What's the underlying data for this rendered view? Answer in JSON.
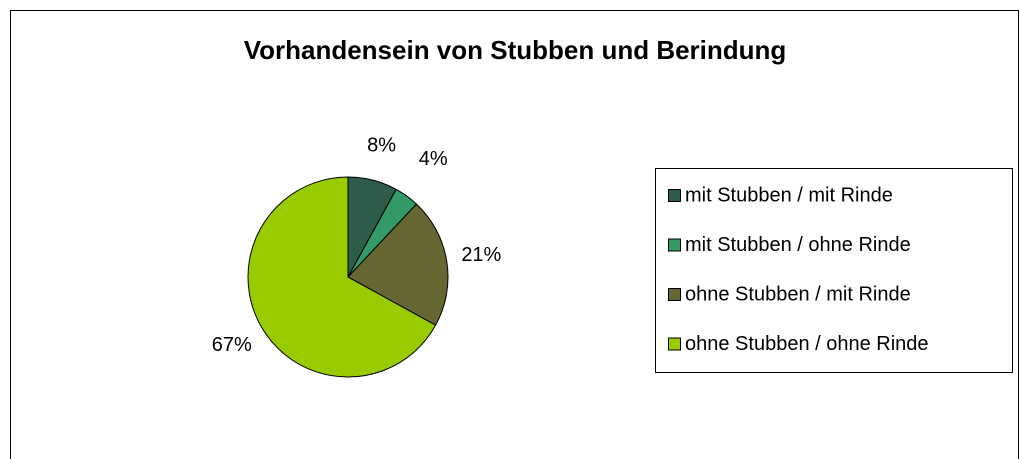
{
  "chart_data": {
    "type": "pie",
    "title": "Vorhandensein von Stubben und Berindung",
    "categories": [
      "mit Stubben / mit Rinde",
      "mit Stubben / ohne Rinde",
      "ohne Stubben / mit Rinde",
      "ohne Stubben / ohne Rinde"
    ],
    "values": [
      8,
      4,
      21,
      67
    ],
    "value_labels": [
      "8%",
      "4%",
      "21%",
      "67%"
    ],
    "colors": [
      "#2e5c4a",
      "#339966",
      "#666633",
      "#99cc00"
    ],
    "legend": "right"
  }
}
